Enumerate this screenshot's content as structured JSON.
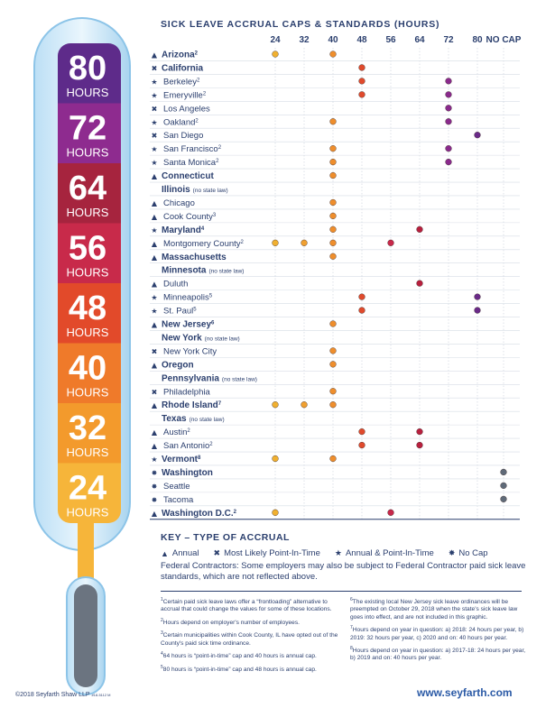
{
  "chart_data": {
    "type": "scatter",
    "title": "SICK LEAVE ACCRUAL CAPS & STANDARDS (HOURS)",
    "columns": [
      "24",
      "32",
      "40",
      "48",
      "56",
      "64",
      "72",
      "80",
      "NO CAP"
    ],
    "type_colors": {
      "24": "#f0b030",
      "32": "#f0a030",
      "40": "#ef8e2c",
      "48": "#e04a2c",
      "56": "#c8284a",
      "64": "#b8203e",
      "72": "#8a2a8c",
      "80": "#6a2a88",
      "NO CAP": "#5f6a78"
    },
    "rows": [
      {
        "label": "Arizona",
        "sup": "2",
        "bold": true,
        "accrual": "annual",
        "values": [
          "24",
          "40"
        ]
      },
      {
        "label": "California",
        "sup": "",
        "bold": true,
        "accrual": "most-likely",
        "values": [
          "48"
        ]
      },
      {
        "label": "Berkeley",
        "sup": "2",
        "bold": false,
        "accrual": "annual-pit",
        "values": [
          "48",
          "72"
        ]
      },
      {
        "label": "Emeryville",
        "sup": "2",
        "bold": false,
        "accrual": "annual-pit",
        "values": [
          "48",
          "72"
        ]
      },
      {
        "label": "Los Angeles",
        "sup": "",
        "bold": false,
        "accrual": "most-likely",
        "values": [
          "72"
        ]
      },
      {
        "label": "Oakland",
        "sup": "2",
        "bold": false,
        "accrual": "annual-pit",
        "values": [
          "40",
          "72"
        ]
      },
      {
        "label": "San Diego",
        "sup": "",
        "bold": false,
        "accrual": "most-likely",
        "values": [
          "80"
        ]
      },
      {
        "label": "San Francisco",
        "sup": "2",
        "bold": false,
        "accrual": "annual-pit",
        "values": [
          "40",
          "72"
        ]
      },
      {
        "label": "Santa Monica",
        "sup": "2",
        "bold": false,
        "accrual": "annual-pit",
        "values": [
          "40",
          "72"
        ]
      },
      {
        "label": "Connecticut",
        "sup": "",
        "bold": true,
        "accrual": "annual",
        "values": [
          "40"
        ]
      },
      {
        "label": "Illinois",
        "note": "(no state law)",
        "sup": "",
        "bold": true,
        "accrual": "none",
        "values": []
      },
      {
        "label": "Chicago",
        "sup": "",
        "bold": false,
        "accrual": "annual",
        "values": [
          "40"
        ]
      },
      {
        "label": "Cook County",
        "sup": "3",
        "bold": false,
        "accrual": "annual",
        "values": [
          "40"
        ]
      },
      {
        "label": "Maryland",
        "sup": "4",
        "bold": true,
        "accrual": "annual-pit",
        "values": [
          "40",
          "64"
        ]
      },
      {
        "label": "Montgomery County",
        "sup": "2",
        "bold": false,
        "accrual": "annual",
        "values": [
          "24",
          "32",
          "40",
          "56"
        ]
      },
      {
        "label": "Massachusetts",
        "sup": "",
        "bold": true,
        "accrual": "annual",
        "values": [
          "40"
        ]
      },
      {
        "label": "Minnesota",
        "note": "(no state law)",
        "sup": "",
        "bold": true,
        "accrual": "none",
        "values": []
      },
      {
        "label": "Duluth",
        "sup": "",
        "bold": false,
        "accrual": "annual",
        "values": [
          "64"
        ]
      },
      {
        "label": "Minneapolis",
        "sup": "5",
        "bold": false,
        "accrual": "annual-pit",
        "values": [
          "48",
          "80"
        ]
      },
      {
        "label": "St. Paul",
        "sup": "5",
        "bold": false,
        "accrual": "annual-pit",
        "values": [
          "48",
          "80"
        ]
      },
      {
        "label": "New Jersey",
        "sup": "6",
        "bold": true,
        "accrual": "annual",
        "values": [
          "40"
        ]
      },
      {
        "label": "New York",
        "note": "(no state law)",
        "sup": "",
        "bold": true,
        "accrual": "none",
        "values": []
      },
      {
        "label": "New York City",
        "sup": "",
        "bold": false,
        "accrual": "most-likely",
        "values": [
          "40"
        ]
      },
      {
        "label": "Oregon",
        "sup": "",
        "bold": true,
        "accrual": "annual",
        "values": [
          "40"
        ]
      },
      {
        "label": "Pennsylvania",
        "note": "(no state law)",
        "sup": "",
        "bold": true,
        "accrual": "none",
        "values": []
      },
      {
        "label": "Philadelphia",
        "sup": "",
        "bold": false,
        "accrual": "most-likely",
        "values": [
          "40"
        ]
      },
      {
        "label": "Rhode Island",
        "sup": "7",
        "bold": true,
        "accrual": "annual",
        "values": [
          "24",
          "32",
          "40"
        ]
      },
      {
        "label": "Texas",
        "note": "(no state law)",
        "sup": "",
        "bold": true,
        "accrual": "none",
        "values": []
      },
      {
        "label": "Austin",
        "sup": "2",
        "bold": false,
        "accrual": "annual",
        "values": [
          "48",
          "64"
        ]
      },
      {
        "label": "San Antonio",
        "sup": "2",
        "bold": false,
        "accrual": "annual",
        "values": [
          "48",
          "64"
        ]
      },
      {
        "label": "Vermont",
        "sup": "8",
        "bold": true,
        "accrual": "annual-pit",
        "values": [
          "24",
          "40"
        ]
      },
      {
        "label": "Washington",
        "sup": "",
        "bold": true,
        "accrual": "nocap",
        "values": [
          "NO CAP"
        ]
      },
      {
        "label": "Seattle",
        "sup": "",
        "bold": false,
        "accrual": "nocap",
        "values": [
          "NO CAP"
        ]
      },
      {
        "label": "Tacoma",
        "sup": "",
        "bold": false,
        "accrual": "nocap",
        "values": [
          "NO CAP"
        ]
      },
      {
        "label": "Washington D.C.",
        "sup": "2",
        "bold": true,
        "accrual": "annual",
        "values": [
          "24",
          "56"
        ]
      }
    ]
  },
  "thermometer": {
    "bands": [
      {
        "value": "80",
        "unit": "HOURS",
        "color": "#5e2b8a"
      },
      {
        "value": "72",
        "unit": "HOURS",
        "color": "#8e2b8f"
      },
      {
        "value": "64",
        "unit": "HOURS",
        "color": "#a6243e"
      },
      {
        "value": "56",
        "unit": "HOURS",
        "color": "#c82a4a"
      },
      {
        "value": "48",
        "unit": "HOURS",
        "color": "#e24a2a"
      },
      {
        "value": "40",
        "unit": "HOURS",
        "color": "#ef7a2a"
      },
      {
        "value": "32",
        "unit": "HOURS",
        "color": "#f39a2c"
      },
      {
        "value": "24",
        "unit": "HOURS",
        "color": "#f6b53a"
      }
    ]
  },
  "key": {
    "title": "KEY – TYPE OF ACCRUAL",
    "items": [
      {
        "symbol": "▲",
        "label": "Annual"
      },
      {
        "symbol": "✖",
        "label": "Most Likely Point-In-Time"
      },
      {
        "symbol": "★",
        "label": "Annual & Point-In-Time"
      },
      {
        "symbol": "✸",
        "label": "No Cap"
      }
    ]
  },
  "federal_note": "Federal Contractors: Some employers may also be subject to Federal Contractor paid sick leave standards, which are not reflected above.",
  "footnotes_left": [
    {
      "num": "1",
      "text": "Certain paid sick leave laws offer a “frontloading” alternative to accrual that could change the values for some of these locations."
    },
    {
      "num": "2",
      "text": "Hours depend on employer's number of employees."
    },
    {
      "num": "3",
      "text": "Certain municipalities within Cook County, IL have opted out of the County's paid sick time ordinance."
    },
    {
      "num": "4",
      "text": "64 hours is “point-in-time” cap and 40 hours is annual cap."
    },
    {
      "num": "5",
      "text": "80 hours is “point-in-time” cap and 48 hours is annual cap."
    }
  ],
  "footnotes_right": [
    {
      "num": "6",
      "text": "The existing local New Jersey sick leave ordinances will be preempted on October 29, 2018 when the state's sick leave law goes into effect, and are not included in this graphic."
    },
    {
      "num": "7",
      "text": "Hours depend on year in question: a) 2018: 24 hours per year, b) 2019: 32 hours per year, c) 2020 and on: 40 hours per year."
    },
    {
      "num": "8",
      "text": "Hours depend on year in question: a) 2017-18: 24 hours per year, b) 2019 and on: 40 hours per year."
    }
  ],
  "copyright": "©2018 Seyfarth Shaw LLP",
  "copyright_code": "#18-5112 M",
  "website": "www.seyfarth.com"
}
